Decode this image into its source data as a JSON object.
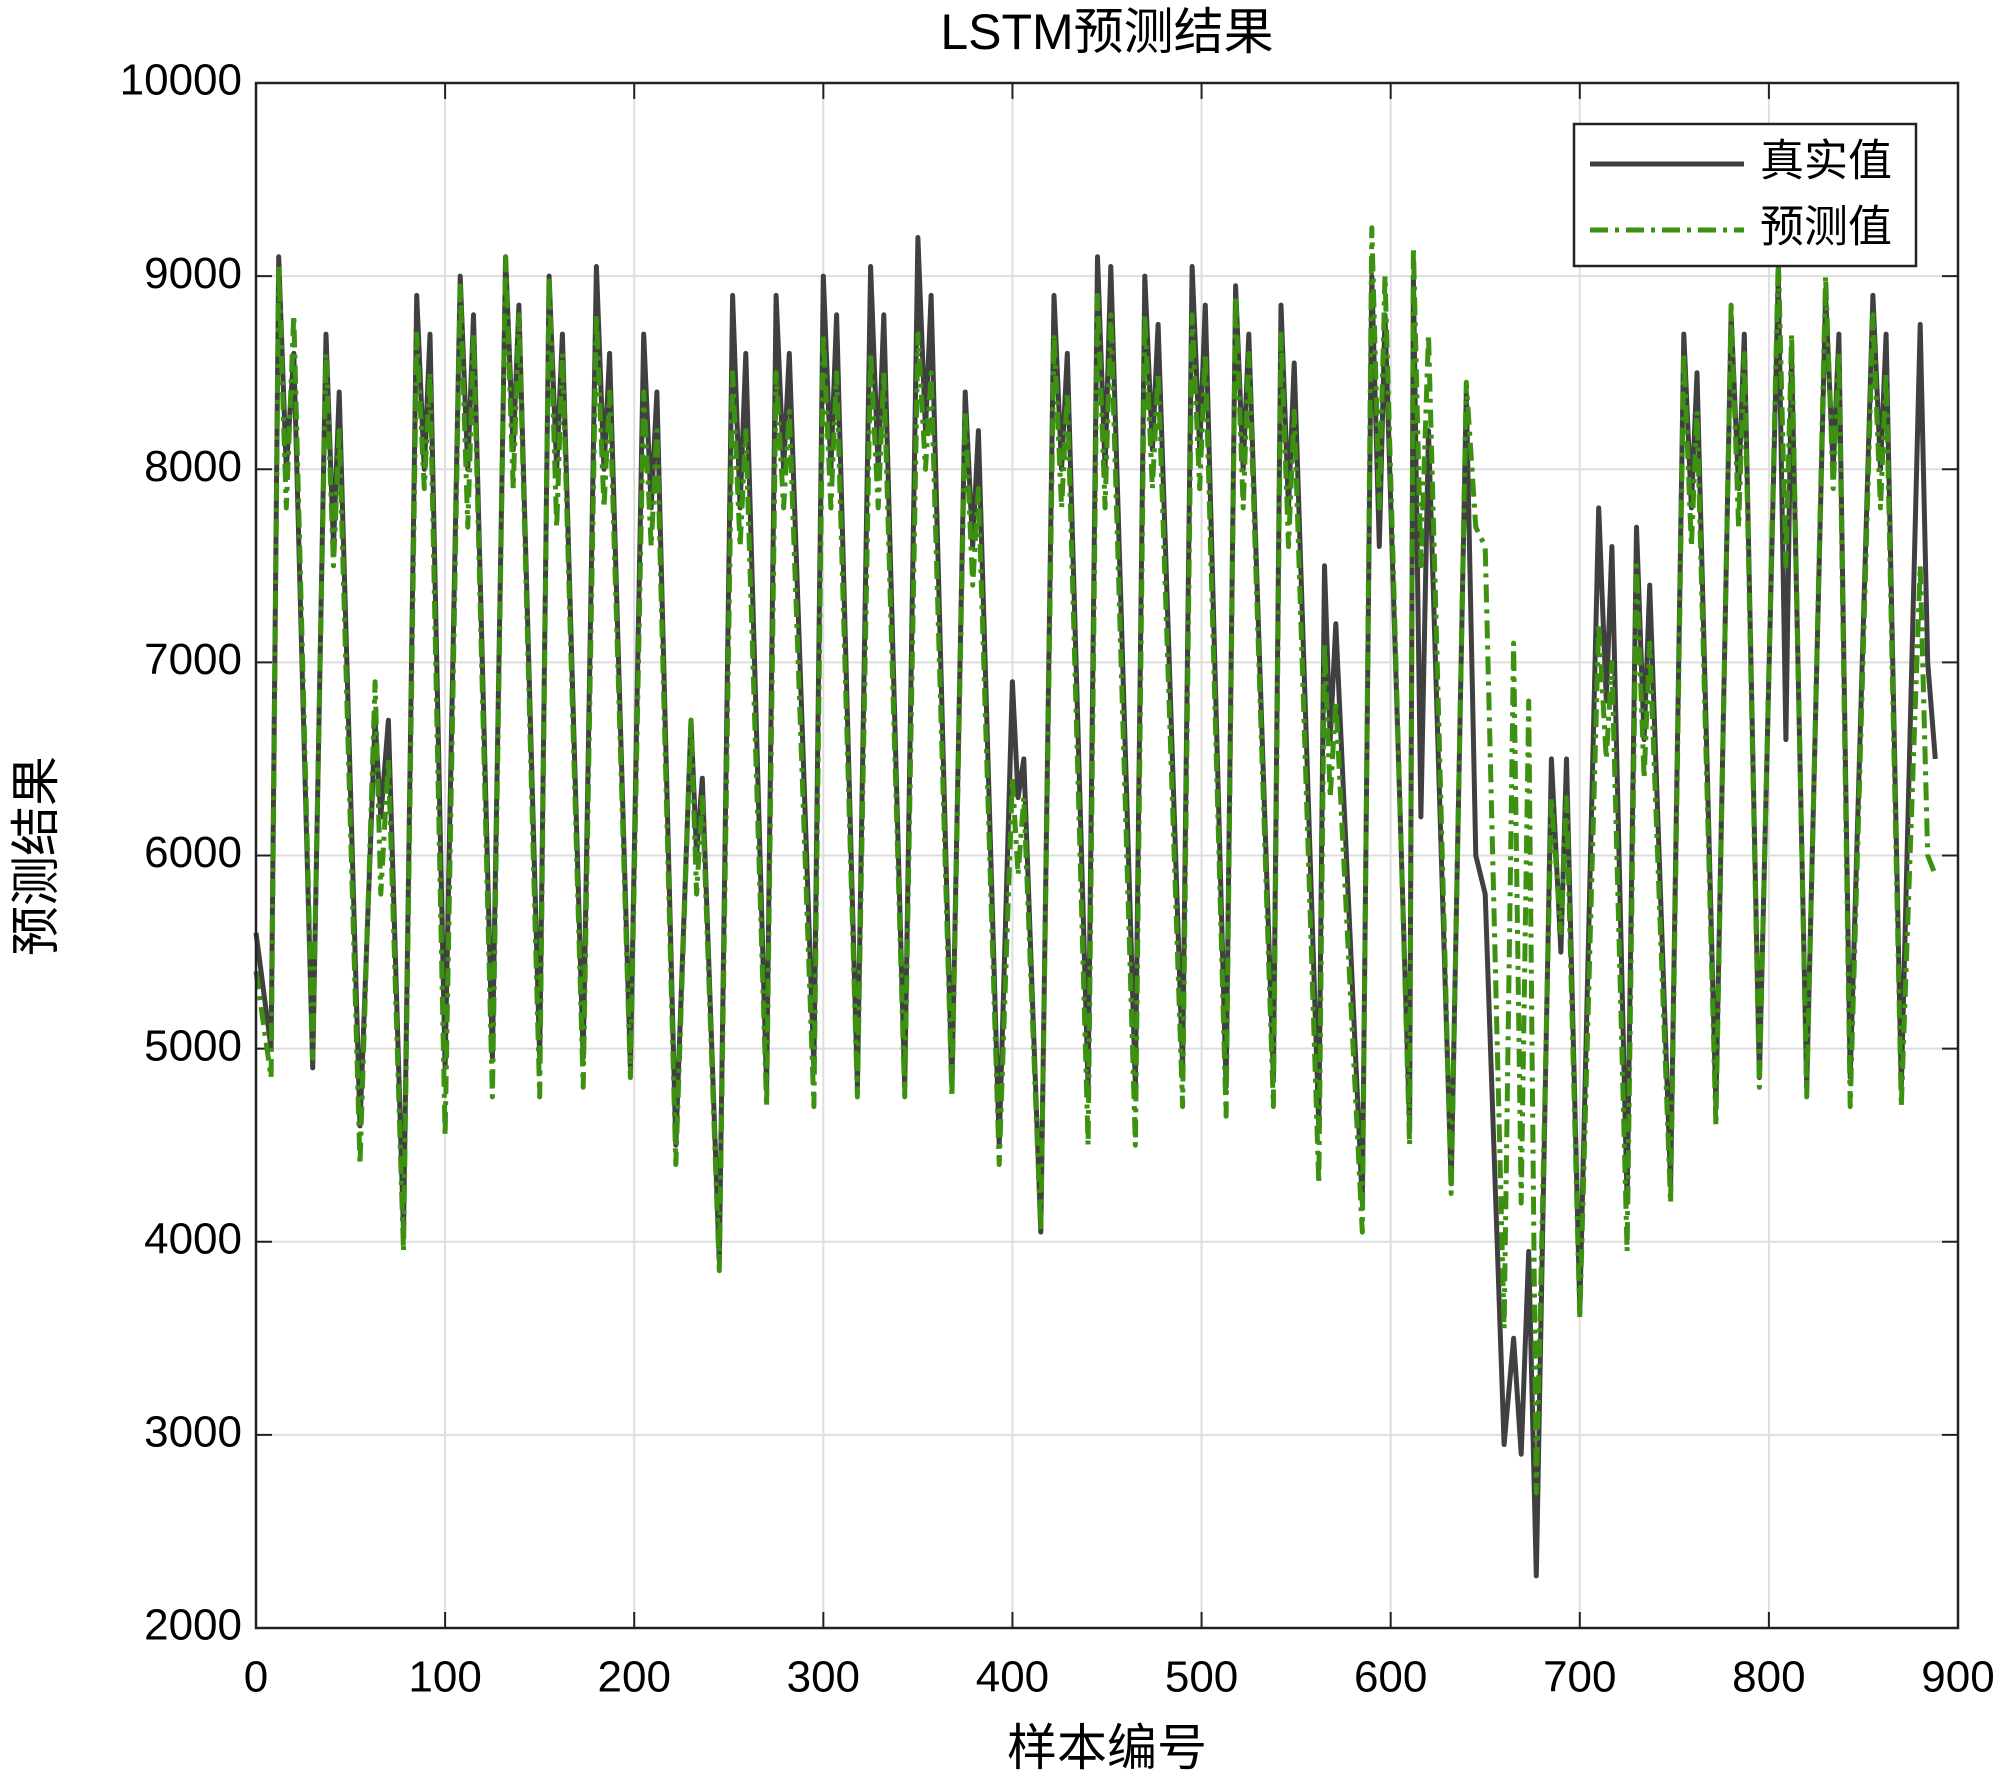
{
  "chart_data": {
    "type": "line",
    "title": "LSTM预测结果",
    "xlabel": "样本编号",
    "ylabel": "预测结果",
    "xlim": [
      0,
      900
    ],
    "xticks": [
      0,
      100,
      200,
      300,
      400,
      500,
      600,
      700,
      800,
      900
    ],
    "ylim": [
      2000,
      10000
    ],
    "yticks": [
      2000,
      3000,
      4000,
      5000,
      6000,
      7000,
      8000,
      9000,
      10000
    ],
    "grid": true,
    "legend": "northeast",
    "x": [
      0,
      8,
      12,
      16,
      20,
      30,
      37,
      41,
      44,
      55,
      63,
      66,
      70,
      78,
      85,
      89,
      92,
      100,
      108,
      112,
      115,
      125,
      132,
      136,
      139,
      150,
      155,
      159,
      162,
      173,
      180,
      184,
      187,
      198,
      205,
      209,
      212,
      222,
      230,
      233,
      236,
      245,
      252,
      256,
      259,
      270,
      275,
      279,
      282,
      295,
      300,
      304,
      307,
      318,
      325,
      329,
      332,
      343,
      350,
      354,
      357,
      368,
      375,
      379,
      382,
      393,
      400,
      403,
      406,
      415,
      422,
      426,
      429,
      440,
      445,
      449,
      452,
      465,
      470,
      474,
      477,
      490,
      495,
      499,
      502,
      513,
      518,
      522,
      525,
      538,
      542,
      546,
      549,
      562,
      565,
      568,
      571,
      585,
      590,
      594,
      597,
      610,
      612,
      616,
      620,
      632,
      640,
      645,
      650,
      660,
      665,
      669,
      673,
      677,
      685,
      690,
      693,
      700,
      710,
      714,
      717,
      725,
      730,
      734,
      737,
      748,
      755,
      759,
      762,
      772,
      780,
      784,
      787,
      795,
      805,
      809,
      812,
      820,
      830,
      834,
      837,
      843,
      855,
      859,
      862,
      870,
      880,
      884,
      888
    ],
    "series": [
      {
        "name": "真实值",
        "color": "#404040",
        "dash": "solid",
        "values": [
          5600,
          5000,
          9100,
          8000,
          8600,
          4900,
          8700,
          7600,
          8400,
          4600,
          6700,
          6200,
          6700,
          4050,
          8900,
          8000,
          8700,
          4900,
          9000,
          8000,
          8800,
          4950,
          9100,
          8100,
          8850,
          4950,
          9000,
          8000,
          8700,
          4950,
          9050,
          8000,
          8600,
          4900,
          8700,
          7800,
          8400,
          4500,
          6700,
          6000,
          6400,
          3900,
          8900,
          7800,
          8600,
          4800,
          8900,
          8000,
          8600,
          4900,
          9000,
          8000,
          8800,
          4800,
          9050,
          8000,
          8800,
          4800,
          9200,
          8200,
          8900,
          4800,
          8400,
          7600,
          8200,
          4500,
          6900,
          6300,
          6500,
          4050,
          8900,
          8000,
          8600,
          4800,
          9100,
          8000,
          9050,
          4800,
          9000,
          8100,
          8750,
          4900,
          9050,
          8100,
          8850,
          4800,
          8950,
          8000,
          8700,
          4850,
          8850,
          7800,
          8550,
          4600,
          7500,
          6600,
          7200,
          4200,
          9000,
          7600,
          8800,
          4600,
          9000,
          6200,
          8200,
          4300,
          8400,
          6000,
          5800,
          2950,
          3500,
          2900,
          3950,
          2270,
          6500,
          5500,
          6500,
          3650,
          7800,
          6800,
          7600,
          4200,
          7700,
          6600,
          7400,
          4300,
          8700,
          7800,
          8500,
          4700,
          8800,
          7900,
          8700,
          4850,
          9000,
          6600,
          8600,
          4800,
          8900,
          8000,
          8700,
          4850,
          8900,
          8000,
          8700,
          4800,
          8750,
          7000,
          6500
        ]
      },
      {
        "name": "预测值",
        "color": "#3c9111",
        "dash": "dashdot",
        "values": [
          5400,
          4850,
          9050,
          7800,
          8800,
          4950,
          8600,
          7500,
          8200,
          4400,
          6900,
          5800,
          6500,
          3950,
          8700,
          7900,
          8500,
          4550,
          8950,
          7700,
          8700,
          4750,
          9100,
          7900,
          8800,
          4750,
          9000,
          7700,
          8600,
          4800,
          8800,
          7800,
          8400,
          4850,
          8400,
          7600,
          8200,
          4400,
          6700,
          5800,
          6300,
          3850,
          8500,
          7600,
          8200,
          4700,
          8500,
          7800,
          8300,
          4700,
          8700,
          7800,
          8500,
          4750,
          8600,
          7800,
          8500,
          4750,
          8700,
          8000,
          8500,
          4750,
          8300,
          7400,
          7900,
          4400,
          6400,
          5900,
          6300,
          4050,
          8700,
          7800,
          8400,
          4500,
          8900,
          7800,
          8800,
          4500,
          8800,
          7900,
          8500,
          4700,
          8800,
          7900,
          8600,
          4650,
          8900,
          7800,
          8600,
          4700,
          8700,
          7600,
          8300,
          4300,
          7100,
          6300,
          6800,
          4050,
          9250,
          7800,
          9000,
          4500,
          9150,
          7500,
          8700,
          4250,
          8450,
          7700,
          7600,
          3550,
          7100,
          4200,
          6800,
          2700,
          6300,
          5600,
          6300,
          3600,
          7200,
          6500,
          7000,
          3950,
          7500,
          6400,
          7100,
          4200,
          8600,
          7600,
          8300,
          4600,
          8850,
          7700,
          8600,
          4800,
          9100,
          7500,
          8700,
          4750,
          9000,
          7900,
          8600,
          4700,
          8800,
          7800,
          8500,
          4700,
          7500,
          6000,
          5900
        ]
      }
    ]
  }
}
